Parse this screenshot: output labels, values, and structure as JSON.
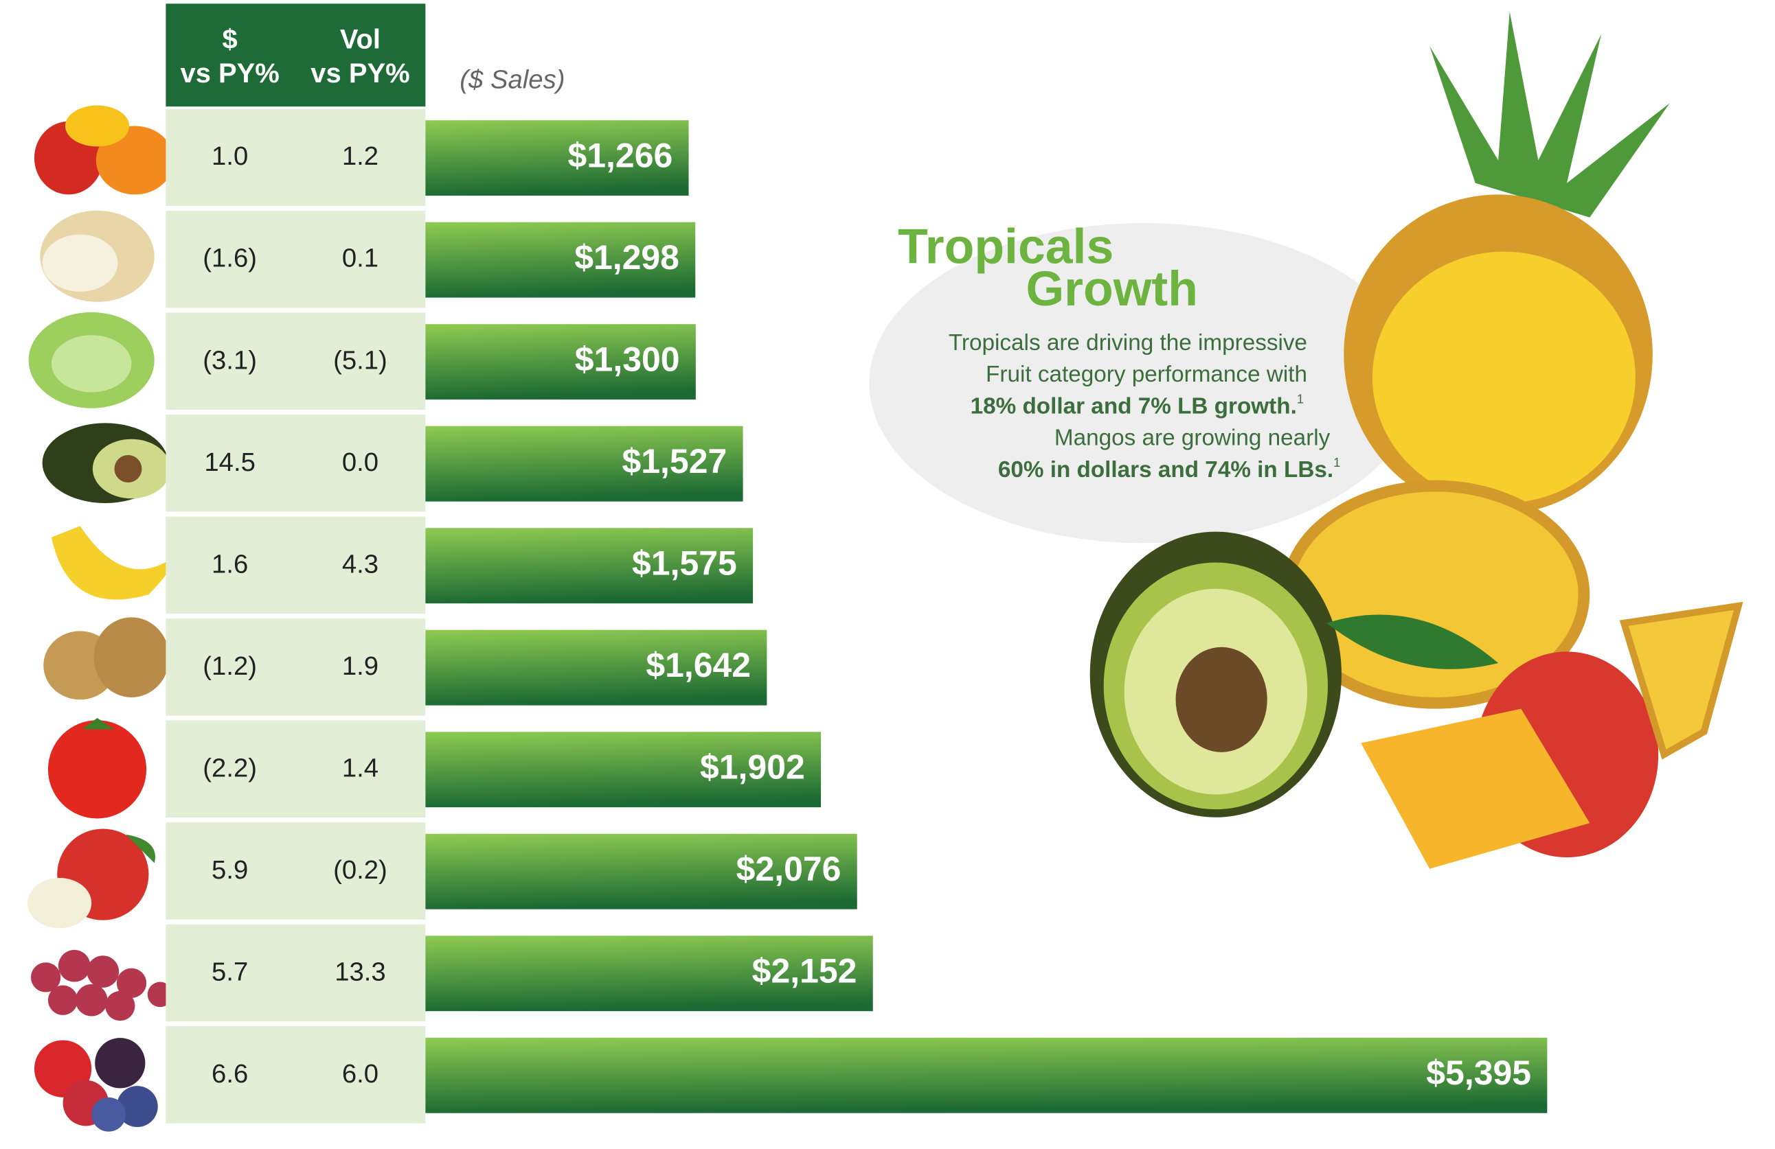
{
  "chart_data": {
    "type": "bar",
    "orientation": "horizontal",
    "subtitle": "($ Sales)",
    "categories": [
      null,
      null,
      null,
      null,
      null,
      null,
      null,
      null,
      null,
      null
    ],
    "values": [
      1266,
      1298,
      1300,
      1527,
      1575,
      1642,
      1902,
      2076,
      2152,
      5395
    ],
    "value_labels": [
      "$1,266",
      "$1,298",
      "$1,300",
      "$1,527",
      "$1,575",
      "$1,642",
      "$1,902",
      "$2,076",
      "$2,152",
      "$5,395"
    ],
    "gradient": [
      "#8fcb52",
      "#1c6a33"
    ]
  },
  "table": {
    "header": [
      [
        "$",
        "vs PY%"
      ],
      [
        "Vol",
        "vs PY%"
      ]
    ],
    "header_color": "#1e6b37",
    "cell_color": "#e3eed7",
    "rows": [
      [
        "1.0",
        "1.2"
      ],
      [
        "(1.6)",
        "0.1"
      ],
      [
        "(3.1)",
        "(5.1)"
      ],
      [
        "14.5",
        "0.0"
      ],
      [
        "1.6",
        "4.3"
      ],
      [
        "(1.2)",
        "1.9"
      ],
      [
        "(2.2)",
        "1.4"
      ],
      [
        "5.9",
        "(0.2)"
      ],
      [
        "5.7",
        "13.3"
      ],
      [
        "6.6",
        "6.0"
      ]
    ]
  },
  "callout": {
    "title": [
      "Tropicals",
      "Growth"
    ],
    "lines": [
      {
        "text": "Tropicals are driving the impressive",
        "bold": false
      },
      {
        "text": "Fruit category performance with",
        "bold": false
      },
      {
        "text": "18% dollar and 7% LB growth.",
        "bold": true,
        "note": "1"
      },
      {
        "text": "Mangos are growing nearly",
        "bold": false
      },
      {
        "text": "60% in dollars and 74% in LBs.",
        "bold": true,
        "note": "1"
      }
    ]
  }
}
